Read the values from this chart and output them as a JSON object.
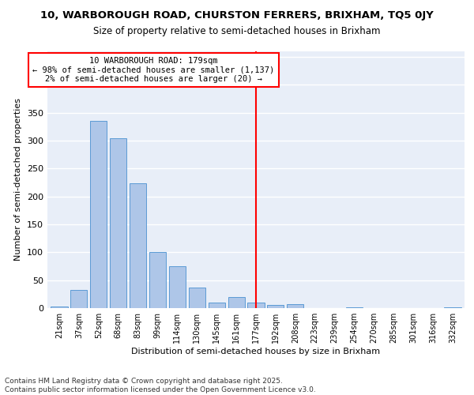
{
  "title_line1": "10, WARBOROUGH ROAD, CHURSTON FERRERS, BRIXHAM, TQ5 0JY",
  "title_line2": "Size of property relative to semi-detached houses in Brixham",
  "xlabel": "Distribution of semi-detached houses by size in Brixham",
  "ylabel": "Number of semi-detached properties",
  "categories": [
    "21sqm",
    "37sqm",
    "52sqm",
    "68sqm",
    "83sqm",
    "99sqm",
    "114sqm",
    "130sqm",
    "145sqm",
    "161sqm",
    "177sqm",
    "192sqm",
    "208sqm",
    "223sqm",
    "239sqm",
    "254sqm",
    "270sqm",
    "285sqm",
    "301sqm",
    "316sqm",
    "332sqm"
  ],
  "values": [
    3,
    33,
    335,
    305,
    223,
    101,
    75,
    37,
    10,
    20,
    10,
    5,
    7,
    0,
    0,
    2,
    0,
    0,
    0,
    0,
    1
  ],
  "bar_color": "#aec6e8",
  "bar_edge_color": "#5b9bd5",
  "vline_x": 10,
  "vline_color": "red",
  "annotation_title": "10 WARBOROUGH ROAD: 179sqm",
  "annotation_line2": "← 98% of semi-detached houses are smaller (1,137)",
  "annotation_line3": "2% of semi-detached houses are larger (20) →",
  "ylim": [
    0,
    460
  ],
  "yticks": [
    0,
    50,
    100,
    150,
    200,
    250,
    300,
    350,
    400,
    450
  ],
  "bg_color": "#e8eef8",
  "grid_color": "#ffffff",
  "footer_line1": "Contains HM Land Registry data © Crown copyright and database right 2025.",
  "footer_line2": "Contains public sector information licensed under the Open Government Licence v3.0."
}
